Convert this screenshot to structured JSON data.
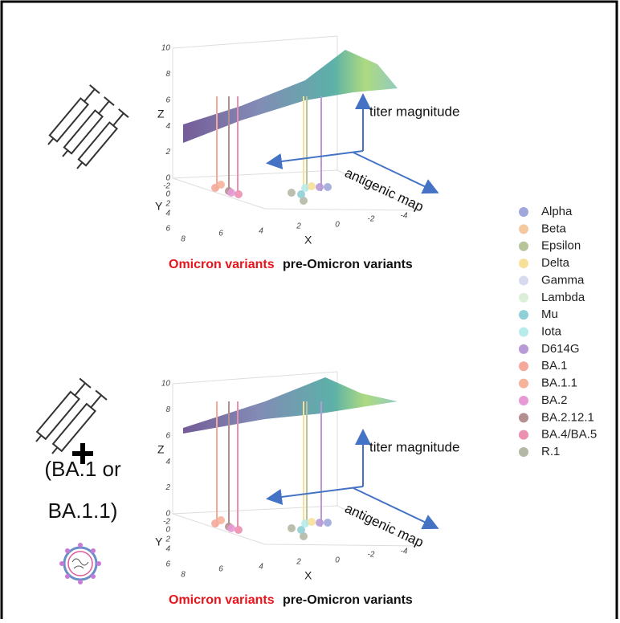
{
  "panels": [
    {
      "axes": {
        "z_label": "Z",
        "y_label": "Y",
        "x_label": "X",
        "z_ticks": [
          10,
          8,
          6,
          4,
          2,
          0
        ],
        "y_ticks": [
          -2,
          0,
          2,
          4,
          6
        ],
        "x_ticks": [
          8,
          6,
          4,
          2,
          0,
          -2,
          -4
        ]
      },
      "arrows": {
        "vertical": "titer magnitude",
        "diagonal": "antigenic map"
      },
      "groups": {
        "omicron": "Omicron variants",
        "pre_omicron": "pre-Omicron variants"
      }
    },
    {
      "side_text": {
        "line1": "(BA.1 or",
        "line2": "BA.1.1)"
      },
      "axes": {
        "z_label": "Z",
        "y_label": "Y",
        "x_label": "X",
        "z_ticks": [
          10,
          8,
          6,
          4,
          2,
          0
        ],
        "y_ticks": [
          -2,
          0,
          2,
          4,
          6
        ],
        "x_ticks": [
          8,
          6,
          4,
          2,
          0,
          -2,
          -4
        ]
      },
      "arrows": {
        "vertical": "titer magnitude",
        "diagonal": "antigenic map"
      },
      "groups": {
        "omicron": "Omicron variants",
        "pre_omicron": "pre-Omicron variants"
      }
    }
  ],
  "legend": [
    {
      "name": "Alpha",
      "color": "#9fa8da"
    },
    {
      "name": "Beta",
      "color": "#f5c9a0"
    },
    {
      "name": "Epsilon",
      "color": "#b7c49a"
    },
    {
      "name": "Delta",
      "color": "#f7e09a"
    },
    {
      "name": "Gamma",
      "color": "#d8daf0"
    },
    {
      "name": "Lambda",
      "color": "#dcefd8"
    },
    {
      "name": "Mu",
      "color": "#8fcfd6"
    },
    {
      "name": "Iota",
      "color": "#b8ecec"
    },
    {
      "name": "D614G",
      "color": "#b89ad6"
    },
    {
      "name": "BA.1",
      "color": "#f4a99a"
    },
    {
      "name": "BA.1.1",
      "color": "#f6b29a"
    },
    {
      "name": "BA.2",
      "color": "#e79ad6"
    },
    {
      "name": "BA.2.12.1",
      "color": "#b48f8f"
    },
    {
      "name": "BA.4/BA.5",
      "color": "#ec8fb0"
    },
    {
      "name": "R.1",
      "color": "#b3b9a4"
    }
  ]
}
